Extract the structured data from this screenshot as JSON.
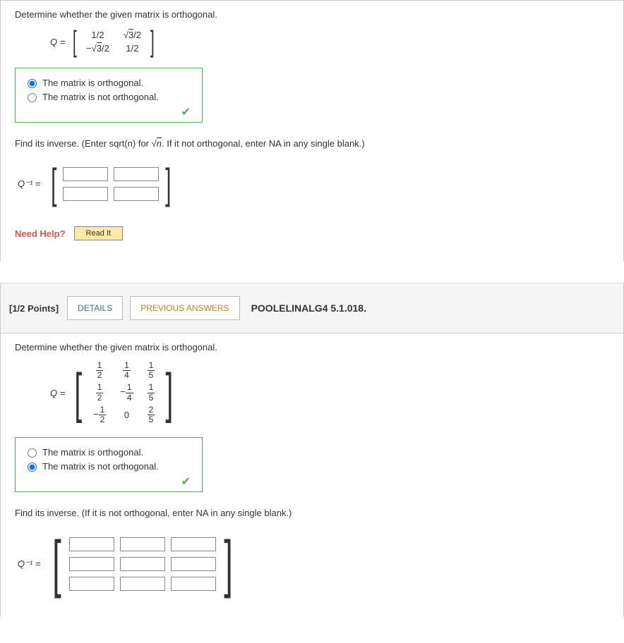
{
  "q1": {
    "prompt": "Determine whether the given matrix is orthogonal.",
    "matrix_label": "Q =",
    "matrix": {
      "r1c1": "1/2",
      "r1c2_sqrt": "3",
      "r1c2_suffix": "/2",
      "r2c1_prefix": "−",
      "r2c1_sqrt": "3",
      "r2c1_suffix": "/2",
      "r2c2": "1/2"
    },
    "opt1": "The matrix is orthogonal.",
    "opt2": "The matrix is not orthogonal.",
    "selected": 1,
    "sub_prompt_a": "Find its inverse. (Enter sqrt(n) for ",
    "sub_prompt_sqrt": "n",
    "sub_prompt_b": ". If it not orthogonal, enter NA in any single blank.)",
    "inv_label": "Q⁻¹ =",
    "need_help": "Need Help?",
    "read_it": "Read It"
  },
  "header": {
    "points": "[1/2 Points]",
    "details": "DETAILS",
    "prev": "PREVIOUS ANSWERS",
    "assign": "POOLELINALG4 5.1.018."
  },
  "q2": {
    "prompt": "Determine whether the given matrix is orthogonal.",
    "matrix_label": "Q =",
    "m": {
      "r1c1n": "1",
      "r1c1d": "2",
      "r1c2n": "1",
      "r1c2d": "4",
      "r1c3n": "1",
      "r1c3d": "5",
      "r2c1n": "1",
      "r2c1d": "2",
      "r2c2n": "1",
      "r2c2d": "4",
      "r2c3n": "1",
      "r2c3d": "5",
      "r3c1n": "1",
      "r3c1d": "2",
      "r3c2": "0",
      "r3c3n": "2",
      "r3c3d": "5",
      "r2c2neg": "−",
      "r3c1neg": "−"
    },
    "opt1": "The matrix is orthogonal.",
    "opt2": "The matrix is not orthogonal.",
    "selected": 2,
    "sub_prompt": "Find its inverse. (If it is not orthogonal, enter NA in any single blank.)",
    "inv_label": "Q⁻¹ ="
  }
}
